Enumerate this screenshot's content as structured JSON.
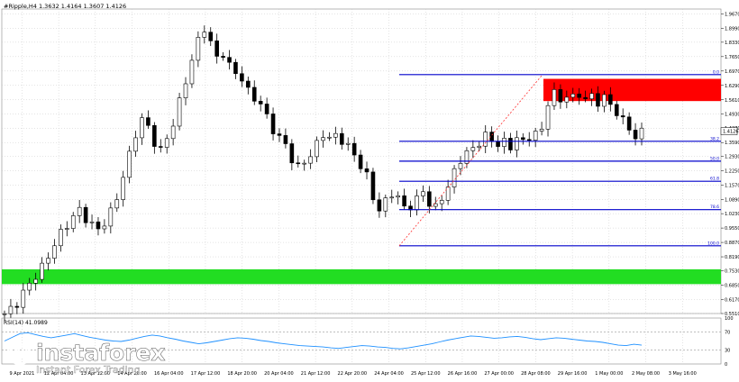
{
  "header": {
    "symbol_line": "#Ripple,H4 1.3632 1.4164 1.3607 1.4126"
  },
  "colors": {
    "candle": "#000000",
    "fib_line": "#0000cc",
    "resistance_zone": "#ff0000",
    "support_zone": "#22dd22",
    "trend_line": "#ff3030",
    "rsi_line": "#1e90ff",
    "grid": "#c8c8c8"
  },
  "chart_data": [
    {
      "type": "candlestick",
      "name": "price",
      "symbol": "#Ripple",
      "timeframe": "H4",
      "ohlc": {
        "open": 1.3632,
        "high": 1.4164,
        "low": 1.3607,
        "close": 1.4126
      },
      "current_price_label": "1.4126",
      "y_ticks": [
        "1.9670",
        "1.8990",
        "1.8330",
        "1.7650",
        "1.6970",
        "1.6290",
        "1.5610",
        "1.4930",
        "1.4270",
        "1.3590",
        "1.2930",
        "1.2250",
        "1.1570",
        "1.0890",
        "1.0230",
        "0.9550",
        "0.8870",
        "0.8190",
        "0.7530",
        "0.6850",
        "0.6170",
        "0.5510"
      ],
      "x_ticks": [
        "9 Apr 2021",
        "12 Apr 04:00",
        "13 Apr 12:00",
        "14 Apr 20:00",
        "16 Apr 04:00",
        "17 Apr 12:00",
        "18 Apr 20:00",
        "20 Apr 04:00",
        "21 Apr 12:00",
        "22 Apr 20:00",
        "24 Apr 04:00",
        "25 Apr 12:00",
        "26 Apr 16:00",
        "27 Apr 00:00",
        "28 Apr 08:00",
        "29 Apr 16:00",
        "1 May 00:00",
        "2 May 08:00",
        "3 May 16:00"
      ],
      "ylim": [
        0.551,
        1.99
      ],
      "close_path": [
        0.55,
        0.57,
        0.6,
        0.65,
        0.69,
        0.73,
        0.77,
        0.82,
        0.88,
        0.93,
        0.97,
        1.01,
        1.04,
        1.0,
        0.97,
        0.95,
        0.98,
        1.03,
        1.1,
        1.2,
        1.3,
        1.4,
        1.47,
        1.43,
        1.36,
        1.32,
        1.38,
        1.45,
        1.55,
        1.65,
        1.75,
        1.84,
        1.9,
        1.83,
        1.76,
        1.78,
        1.72,
        1.69,
        1.66,
        1.6,
        1.57,
        1.54,
        1.48,
        1.42,
        1.38,
        1.35,
        1.28,
        1.24,
        1.27,
        1.3,
        1.35,
        1.4,
        1.38,
        1.39,
        1.37,
        1.34,
        1.3,
        1.25,
        1.2,
        1.1,
        1.04,
        1.08,
        1.12,
        1.1,
        1.05,
        1.06,
        1.09,
        1.13,
        1.07,
        1.05,
        1.1,
        1.15,
        1.22,
        1.28,
        1.31,
        1.33,
        1.36,
        1.39,
        1.37,
        1.35,
        1.36,
        1.34,
        1.38,
        1.36,
        1.39,
        1.4,
        1.42,
        1.55,
        1.59,
        1.56,
        1.58,
        1.57,
        1.59,
        1.56,
        1.58,
        1.55,
        1.57,
        1.54,
        1.5,
        1.46,
        1.43,
        1.38,
        1.41
      ],
      "fibonacci": {
        "levels": [
          {
            "label": "0.0",
            "price": 1.68
          },
          {
            "label": "38.2",
            "price": 1.365
          },
          {
            "label": "50.0",
            "price": 1.271
          },
          {
            "label": "61.8",
            "price": 1.176
          },
          {
            "label": "78.6",
            "price": 1.042
          },
          {
            "label": "100.0",
            "price": 0.871
          }
        ]
      },
      "zones": [
        {
          "kind": "resistance",
          "top": 1.66,
          "bottom": 1.555
        },
        {
          "kind": "support",
          "top": 0.76,
          "bottom": 0.69
        }
      ],
      "trendline": {
        "from": 0.871,
        "to": 1.68
      }
    },
    {
      "type": "line",
      "name": "RSI(14)",
      "label": "RSI(14) 41.0989",
      "value": 41.0989,
      "ylim": [
        0,
        100
      ],
      "levels": [
        30,
        70
      ],
      "y_ticks": [
        "100",
        "70",
        "30",
        "0"
      ],
      "values": [
        50,
        58,
        66,
        68,
        64,
        60,
        57,
        60,
        63,
        66,
        62,
        58,
        55,
        52,
        50,
        49,
        52,
        56,
        60,
        63,
        61,
        57,
        54,
        50,
        47,
        44,
        46,
        49,
        52,
        55,
        57,
        56,
        54,
        51,
        49,
        46,
        44,
        42,
        40,
        39,
        38,
        37,
        35,
        34,
        36,
        38,
        40,
        39,
        37,
        36,
        34,
        33,
        35,
        38,
        41,
        44,
        48,
        52,
        55,
        58,
        61,
        60,
        58,
        56,
        57,
        59,
        60,
        58,
        55,
        53,
        55,
        57,
        56,
        54,
        52,
        50,
        49,
        47,
        44,
        41,
        40,
        43,
        41
      ]
    }
  ],
  "watermark": {
    "brand": "instaforex",
    "tagline": "Instant Forex Trading"
  }
}
